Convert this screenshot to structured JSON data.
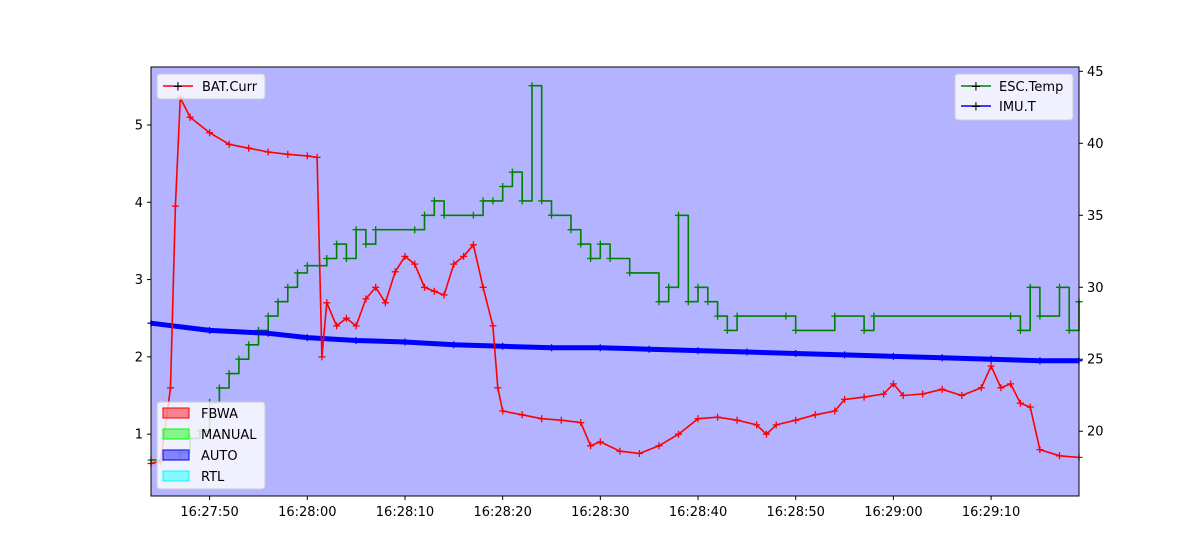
{
  "chart_data": {
    "type": "line",
    "title": "",
    "xlabel": "",
    "x_ticks": [
      "16:27:50",
      "16:28:00",
      "16:28:10",
      "16:28:20",
      "16:28:30",
      "16:28:40",
      "16:28:50",
      "16:29:00",
      "16:29:10"
    ],
    "xlim": [
      "16:27:44",
      "16:29:19"
    ],
    "y_left": {
      "label": "",
      "lim": [
        0.2,
        5.75
      ],
      "ticks": [
        "1",
        "2",
        "3",
        "4",
        "5"
      ]
    },
    "y_right": {
      "label": "",
      "lim": [
        15.5,
        45.3
      ],
      "ticks": [
        "20",
        "25",
        "30",
        "35",
        "40",
        "45"
      ]
    },
    "background_mode": "AUTO",
    "mode_legend": {
      "placement": "lower-left",
      "entries": [
        {
          "label": "FBWA",
          "color": "#ff0000"
        },
        {
          "label": "MANUAL",
          "color": "#00ff00"
        },
        {
          "label": "AUTO",
          "color": "#0000ff"
        },
        {
          "label": "RTL",
          "color": "#00ffff"
        }
      ]
    },
    "series": [
      {
        "name": "BAT.Curr",
        "axis": "left",
        "color": "#ff0000",
        "legend_placement": "upper-left",
        "points": [
          [
            "16:27:44",
            0.62
          ],
          [
            "16:27:45",
            0.65
          ],
          [
            "16:27:46",
            1.6
          ],
          [
            "16:27:46.5",
            3.95
          ],
          [
            "16:27:47",
            5.35
          ],
          [
            "16:27:48",
            5.1
          ],
          [
            "16:27:50",
            4.9
          ],
          [
            "16:27:52",
            4.75
          ],
          [
            "16:27:54",
            4.7
          ],
          [
            "16:27:56",
            4.65
          ],
          [
            "16:27:58",
            4.62
          ],
          [
            "16:28:00",
            4.6
          ],
          [
            "16:28:01",
            4.58
          ],
          [
            "16:28:01.5",
            2.0
          ],
          [
            "16:28:02",
            2.7
          ],
          [
            "16:28:03",
            2.4
          ],
          [
            "16:28:04",
            2.5
          ],
          [
            "16:28:05",
            2.4
          ],
          [
            "16:28:06",
            2.75
          ],
          [
            "16:28:07",
            2.9
          ],
          [
            "16:28:08",
            2.7
          ],
          [
            "16:28:09",
            3.1
          ],
          [
            "16:28:10",
            3.3
          ],
          [
            "16:28:11",
            3.2
          ],
          [
            "16:28:12",
            2.9
          ],
          [
            "16:28:13",
            2.85
          ],
          [
            "16:28:14",
            2.8
          ],
          [
            "16:28:15",
            3.2
          ],
          [
            "16:28:16",
            3.3
          ],
          [
            "16:28:17",
            3.45
          ],
          [
            "16:28:18",
            2.9
          ],
          [
            "16:28:19",
            2.4
          ],
          [
            "16:28:19.5",
            1.6
          ],
          [
            "16:28:20",
            1.3
          ],
          [
            "16:28:22",
            1.25
          ],
          [
            "16:28:24",
            1.2
          ],
          [
            "16:28:26",
            1.18
          ],
          [
            "16:28:28",
            1.15
          ],
          [
            "16:28:29",
            0.85
          ],
          [
            "16:28:30",
            0.9
          ],
          [
            "16:28:32",
            0.78
          ],
          [
            "16:28:34",
            0.75
          ],
          [
            "16:28:36",
            0.85
          ],
          [
            "16:28:38",
            1.0
          ],
          [
            "16:28:40",
            1.2
          ],
          [
            "16:28:42",
            1.22
          ],
          [
            "16:28:44",
            1.18
          ],
          [
            "16:28:46",
            1.12
          ],
          [
            "16:28:47",
            1.0
          ],
          [
            "16:28:48",
            1.12
          ],
          [
            "16:28:50",
            1.18
          ],
          [
            "16:28:52",
            1.25
          ],
          [
            "16:28:54",
            1.3
          ],
          [
            "16:28:55",
            1.45
          ],
          [
            "16:28:57",
            1.48
          ],
          [
            "16:28:59",
            1.52
          ],
          [
            "16:29:00",
            1.65
          ],
          [
            "16:29:01",
            1.5
          ],
          [
            "16:29:03",
            1.52
          ],
          [
            "16:29:05",
            1.58
          ],
          [
            "16:29:07",
            1.5
          ],
          [
            "16:29:09",
            1.6
          ],
          [
            "16:29:10",
            1.88
          ],
          [
            "16:29:11",
            1.6
          ],
          [
            "16:29:12",
            1.65
          ],
          [
            "16:29:13",
            1.4
          ],
          [
            "16:29:14",
            1.35
          ],
          [
            "16:29:15",
            0.8
          ],
          [
            "16:29:17",
            0.72
          ],
          [
            "16:29:19",
            0.7
          ]
        ]
      },
      {
        "name": "ESC.Temp",
        "axis": "right",
        "color": "#008000",
        "legend_placement": "upper-right",
        "points": [
          [
            "16:27:44",
            18
          ],
          [
            "16:27:47",
            18.5
          ],
          [
            "16:27:48",
            19.5
          ],
          [
            "16:27:49",
            20
          ],
          [
            "16:27:50",
            22
          ],
          [
            "16:27:51",
            23
          ],
          [
            "16:27:52",
            24
          ],
          [
            "16:27:53",
            25
          ],
          [
            "16:27:54",
            26
          ],
          [
            "16:27:55",
            27
          ],
          [
            "16:27:56",
            28
          ],
          [
            "16:27:57",
            29
          ],
          [
            "16:27:58",
            30
          ],
          [
            "16:27:59",
            31
          ],
          [
            "16:28:00",
            31.5
          ],
          [
            "16:28:02",
            32
          ],
          [
            "16:28:03",
            33
          ],
          [
            "16:28:04",
            32
          ],
          [
            "16:28:05",
            34
          ],
          [
            "16:28:06",
            33
          ],
          [
            "16:28:07",
            34
          ],
          [
            "16:28:11",
            34
          ],
          [
            "16:28:12",
            35
          ],
          [
            "16:28:13",
            36
          ],
          [
            "16:28:14",
            35
          ],
          [
            "16:28:17",
            35
          ],
          [
            "16:28:18",
            36
          ],
          [
            "16:28:19",
            36
          ],
          [
            "16:28:20",
            37
          ],
          [
            "16:28:21",
            38
          ],
          [
            "16:28:22",
            36
          ],
          [
            "16:28:23",
            44
          ],
          [
            "16:28:24",
            36
          ],
          [
            "16:28:25",
            35
          ],
          [
            "16:28:27",
            34
          ],
          [
            "16:28:28",
            33
          ],
          [
            "16:28:29",
            32
          ],
          [
            "16:28:30",
            33
          ],
          [
            "16:28:31",
            32
          ],
          [
            "16:28:33",
            31
          ],
          [
            "16:28:36",
            29
          ],
          [
            "16:28:37",
            30
          ],
          [
            "16:28:38",
            35
          ],
          [
            "16:28:39",
            29
          ],
          [
            "16:28:40",
            30
          ],
          [
            "16:28:41",
            29
          ],
          [
            "16:28:42",
            28
          ],
          [
            "16:28:43",
            27
          ],
          [
            "16:28:44",
            28
          ],
          [
            "16:28:49",
            28
          ],
          [
            "16:28:50",
            27
          ],
          [
            "16:28:54",
            28
          ],
          [
            "16:28:57",
            27
          ],
          [
            "16:28:58",
            28
          ],
          [
            "16:29:12",
            28
          ],
          [
            "16:29:13",
            27
          ],
          [
            "16:29:14",
            30
          ],
          [
            "16:29:15",
            28
          ],
          [
            "16:29:17",
            30
          ],
          [
            "16:29:18",
            27
          ],
          [
            "16:29:19",
            29
          ]
        ]
      },
      {
        "name": "IMU.T",
        "axis": "right",
        "color": "#0000ff",
        "legend_placement": "upper-right",
        "points": [
          [
            "16:27:44",
            27.5
          ],
          [
            "16:27:50",
            27.0
          ],
          [
            "16:27:56",
            26.8
          ],
          [
            "16:28:00",
            26.5
          ],
          [
            "16:28:05",
            26.3
          ],
          [
            "16:28:10",
            26.2
          ],
          [
            "16:28:15",
            26.0
          ],
          [
            "16:28:20",
            25.9
          ],
          [
            "16:28:25",
            25.8
          ],
          [
            "16:28:30",
            25.8
          ],
          [
            "16:28:35",
            25.7
          ],
          [
            "16:28:40",
            25.6
          ],
          [
            "16:28:45",
            25.5
          ],
          [
            "16:28:50",
            25.4
          ],
          [
            "16:28:55",
            25.3
          ],
          [
            "16:29:00",
            25.2
          ],
          [
            "16:29:05",
            25.1
          ],
          [
            "16:29:10",
            25.0
          ],
          [
            "16:29:15",
            24.9
          ],
          [
            "16:29:19",
            24.9
          ]
        ]
      }
    ]
  }
}
